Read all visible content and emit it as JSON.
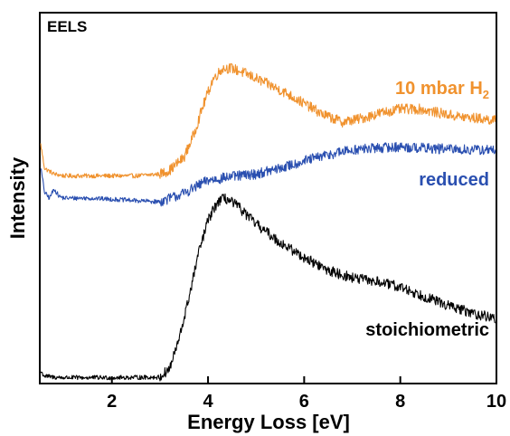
{
  "chart_data": {
    "type": "line",
    "panel_label": "EELS",
    "xlabel": "Energy Loss [eV]",
    "ylabel": "Intensity",
    "xlim": [
      0.5,
      10
    ],
    "ylim": [
      0,
      1
    ],
    "xticks": [
      2,
      4,
      6,
      8,
      10
    ],
    "y_tick_labels": false,
    "grid": false,
    "series": [
      {
        "name": "10 mbar H",
        "name_subscript": "2",
        "color": "#f0922e",
        "x": [
          0.5,
          0.6,
          0.8,
          1.0,
          1.5,
          2.0,
          2.5,
          3.0,
          3.2,
          3.5,
          3.7,
          3.9,
          4.1,
          4.3,
          4.5,
          4.8,
          5.2,
          5.6,
          6.0,
          6.4,
          6.8,
          7.2,
          7.6,
          8.0,
          8.4,
          8.8,
          9.2,
          9.6,
          10.0
        ],
        "y": [
          0.66,
          0.58,
          0.565,
          0.56,
          0.56,
          0.56,
          0.56,
          0.565,
          0.575,
          0.61,
          0.67,
          0.75,
          0.82,
          0.85,
          0.85,
          0.835,
          0.81,
          0.785,
          0.755,
          0.725,
          0.705,
          0.715,
          0.73,
          0.74,
          0.74,
          0.73,
          0.72,
          0.715,
          0.71
        ]
      },
      {
        "name": "reduced",
        "color": "#2a4fb0",
        "x": [
          0.5,
          0.6,
          0.7,
          0.8,
          0.9,
          1.0,
          1.5,
          2.0,
          2.5,
          3.0,
          3.5,
          4.0,
          4.5,
          5.0,
          5.5,
          6.0,
          6.5,
          7.0,
          7.5,
          8.0,
          8.5,
          9.0,
          9.5,
          10.0
        ],
        "y": [
          0.6,
          0.515,
          0.5,
          0.525,
          0.505,
          0.5,
          0.5,
          0.497,
          0.493,
          0.49,
          0.513,
          0.548,
          0.558,
          0.565,
          0.58,
          0.6,
          0.617,
          0.63,
          0.635,
          0.638,
          0.635,
          0.632,
          0.63,
          0.63
        ]
      },
      {
        "name": "stoichiometric",
        "color": "#000000",
        "x": [
          0.5,
          0.6,
          0.8,
          1.0,
          2.0,
          3.0,
          3.2,
          3.4,
          3.6,
          3.8,
          4.0,
          4.2,
          4.35,
          4.6,
          5.0,
          5.5,
          6.0,
          6.5,
          7.0,
          7.5,
          8.0,
          8.5,
          9.0,
          9.5,
          10.0
        ],
        "y": [
          0.035,
          0.02,
          0.017,
          0.016,
          0.016,
          0.017,
          0.04,
          0.12,
          0.23,
          0.35,
          0.44,
          0.49,
          0.5,
          0.48,
          0.43,
          0.38,
          0.34,
          0.305,
          0.285,
          0.275,
          0.26,
          0.235,
          0.21,
          0.19,
          0.175
        ]
      }
    ]
  }
}
